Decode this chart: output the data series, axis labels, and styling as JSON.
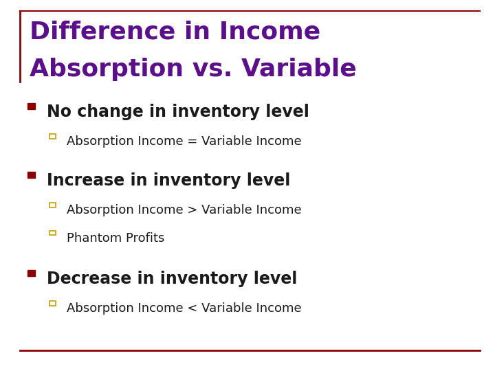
{
  "title_line1": "Difference in Income",
  "title_line2": "Absorption vs. Variable",
  "title_color": "#5C0F8B",
  "background_color": "#FFFFFF",
  "bullet_color": "#8B0000",
  "sub_bullet_color": "#C8A000",
  "bullet1_text": "No change in inventory level",
  "bullet1_subs": [
    "Absorption Income = Variable Income"
  ],
  "bullet2_text": "Increase in inventory level",
  "bullet2_subs": [
    "Absorption Income > Variable Income",
    "Phantom Profits"
  ],
  "bullet3_text": "Decrease in inventory level",
  "bullet3_subs": [
    "Absorption Income < Variable Income"
  ],
  "bullet_fontsize": 17,
  "sub_fontsize": 13,
  "title_fontsize": 26,
  "text_color": "#1A1A1A",
  "bottom_line_color": "#8B0000",
  "top_line_color": "#8B0000",
  "left_bar_color": "#8B0000"
}
